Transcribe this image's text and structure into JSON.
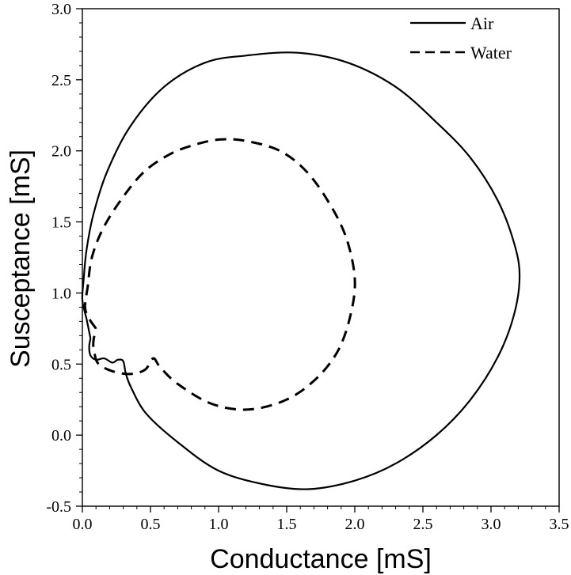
{
  "chart_data": {
    "type": "line",
    "title": "",
    "xlabel": "Conductance [mS]",
    "ylabel": "Susceptance [mS]",
    "xlim": [
      0.0,
      3.5
    ],
    "ylim": [
      -0.5,
      3.0
    ],
    "x_ticks": [
      "0.0",
      "0.5",
      "1.0",
      "1.5",
      "2.0",
      "2.5",
      "3.0",
      "3.5"
    ],
    "y_ticks": [
      "-0.5",
      "0.0",
      "0.5",
      "1.0",
      "1.5",
      "2.0",
      "2.5",
      "3.0"
    ],
    "grid": false,
    "legend_position": "top-right",
    "series": [
      {
        "name": "Air",
        "style": "solid",
        "points": [
          [
            0.06,
            0.68
          ],
          [
            0.03,
            0.82
          ],
          [
            0.0,
            0.95
          ],
          [
            0.01,
            1.1
          ],
          [
            0.03,
            1.3
          ],
          [
            0.08,
            1.55
          ],
          [
            0.18,
            1.85
          ],
          [
            0.35,
            2.17
          ],
          [
            0.6,
            2.45
          ],
          [
            0.9,
            2.62
          ],
          [
            1.2,
            2.67
          ],
          [
            1.58,
            2.69
          ],
          [
            1.95,
            2.62
          ],
          [
            2.3,
            2.45
          ],
          [
            2.6,
            2.2
          ],
          [
            2.85,
            1.95
          ],
          [
            3.05,
            1.65
          ],
          [
            3.17,
            1.35
          ],
          [
            3.21,
            1.12
          ],
          [
            3.17,
            0.85
          ],
          [
            3.05,
            0.55
          ],
          [
            2.85,
            0.25
          ],
          [
            2.6,
            0.0
          ],
          [
            2.3,
            -0.2
          ],
          [
            2.0,
            -0.32
          ],
          [
            1.67,
            -0.38
          ],
          [
            1.35,
            -0.35
          ],
          [
            1.0,
            -0.25
          ],
          [
            0.7,
            -0.05
          ],
          [
            0.47,
            0.15
          ],
          [
            0.36,
            0.33
          ],
          [
            0.32,
            0.43
          ],
          [
            0.3,
            0.52
          ],
          [
            0.26,
            0.53
          ],
          [
            0.22,
            0.51
          ],
          [
            0.16,
            0.54
          ],
          [
            0.1,
            0.53
          ],
          [
            0.06,
            0.56
          ],
          [
            0.05,
            0.62
          ],
          [
            0.06,
            0.68
          ]
        ]
      },
      {
        "name": "Water",
        "style": "dashed",
        "points": [
          [
            0.1,
            0.75
          ],
          [
            0.05,
            0.82
          ],
          [
            0.02,
            0.9
          ],
          [
            0.04,
            1.05
          ],
          [
            0.07,
            1.25
          ],
          [
            0.15,
            1.45
          ],
          [
            0.28,
            1.65
          ],
          [
            0.45,
            1.85
          ],
          [
            0.65,
            1.98
          ],
          [
            0.85,
            2.05
          ],
          [
            1.02,
            2.08
          ],
          [
            1.2,
            2.07
          ],
          [
            1.45,
            2.0
          ],
          [
            1.65,
            1.85
          ],
          [
            1.82,
            1.62
          ],
          [
            1.94,
            1.38
          ],
          [
            2.0,
            1.1
          ],
          [
            1.97,
            0.85
          ],
          [
            1.88,
            0.6
          ],
          [
            1.72,
            0.4
          ],
          [
            1.5,
            0.25
          ],
          [
            1.22,
            0.18
          ],
          [
            0.95,
            0.22
          ],
          [
            0.7,
            0.36
          ],
          [
            0.57,
            0.48
          ],
          [
            0.52,
            0.54
          ],
          [
            0.46,
            0.46
          ],
          [
            0.35,
            0.43
          ],
          [
            0.22,
            0.45
          ],
          [
            0.12,
            0.5
          ],
          [
            0.09,
            0.57
          ],
          [
            0.08,
            0.65
          ],
          [
            0.1,
            0.75
          ]
        ]
      }
    ]
  }
}
